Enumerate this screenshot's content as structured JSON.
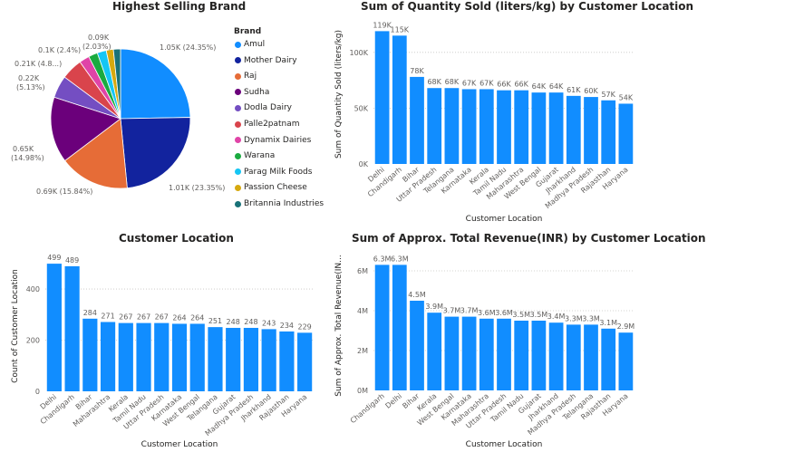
{
  "chart_data": [
    {
      "type": "pie",
      "title": "Highest Selling Brand",
      "legend_title": "Brand",
      "legend_position": "right",
      "slices": [
        {
          "name": "Amul",
          "value": 1.05,
          "label": "1.05K (24.35%)",
          "color": "#118DFF"
        },
        {
          "name": "Mother Dairy",
          "value": 1.01,
          "label": "1.01K (23.35%)",
          "color": "#12239E"
        },
        {
          "name": "Raj",
          "value": 0.69,
          "label": "0.69K (15.84%)",
          "color": "#E66C37"
        },
        {
          "name": "Sudha",
          "value": 0.65,
          "label": "0.65K (14.98%)",
          "color": "#6B007B"
        },
        {
          "name": "Dodla Dairy",
          "value": 0.22,
          "label": "0.22K (5.13%)",
          "color": "#744EC2"
        },
        {
          "name": "Palle2patnam",
          "value": 0.21,
          "label": "0.21K (4.8...)",
          "color": "#D9444C"
        },
        {
          "name": "Dynamix Dairies",
          "value": 0.1,
          "label": "0.1K (2.4%)",
          "color": "#E044A7"
        },
        {
          "name": "Warana",
          "value": 0.09,
          "label": "0.09K (2.03%)",
          "color": "#1AAB40"
        },
        {
          "name": "Parag Milk Foods",
          "value": 0.09,
          "label": "",
          "color": "#15C6F4"
        },
        {
          "name": "Passion Cheese",
          "value": 0.07,
          "label": "",
          "color": "#D6A90F"
        },
        {
          "name": "Britannia Industries",
          "value": 0.07,
          "label": "",
          "color": "#197278"
        }
      ]
    },
    {
      "type": "bar",
      "title": "Sum of Quantity Sold (liters/kg) by Customer Location",
      "xlabel": "Customer Location",
      "ylabel": "Sum of Quantity Sold (liters/kg)",
      "ylim": [
        0,
        125000
      ],
      "yticks": [
        0,
        50000,
        100000
      ],
      "ytick_labels": [
        "0K",
        "50K",
        "100K"
      ],
      "grid": true,
      "color": "#118DFF",
      "categories": [
        "Delhi",
        "Chandigarh",
        "Bihar",
        "Uttar Pradesh",
        "Telangana",
        "Karnataka",
        "Kerala",
        "Tamil Nadu",
        "Maharashtra",
        "West Bengal",
        "Gujarat",
        "Jharkhand",
        "Madhya Pradesh",
        "Rajasthan",
        "Haryana"
      ],
      "values": [
        119000,
        115000,
        78000,
        68000,
        68000,
        67000,
        67000,
        66000,
        66000,
        64000,
        64000,
        61000,
        60000,
        57000,
        54000
      ],
      "data_labels": [
        "119K",
        "115K",
        "78K",
        "68K",
        "68K",
        "67K",
        "67K",
        "66K",
        "66K",
        "64K",
        "64K",
        "61K",
        "60K",
        "57K",
        "54K"
      ]
    },
    {
      "type": "bar",
      "title": "Customer Location",
      "xlabel": "Customer Location",
      "ylabel": "Count of Customer Location",
      "ylim": [
        0,
        510
      ],
      "yticks": [
        0,
        200,
        400
      ],
      "ytick_labels": [
        "0",
        "200",
        "400"
      ],
      "grid": true,
      "color": "#118DFF",
      "categories": [
        "Delhi",
        "Chandigarh",
        "Bihar",
        "Maharashtra",
        "Kerala",
        "Tamil Nadu",
        "Uttar Pradesh",
        "Karnataka",
        "West Bengal",
        "Telangana",
        "Gujarat",
        "Madhya Pradesh",
        "Jharkhand",
        "Rajasthan",
        "Haryana"
      ],
      "values": [
        499,
        489,
        284,
        271,
        267,
        267,
        267,
        264,
        264,
        251,
        248,
        248,
        243,
        234,
        229
      ],
      "data_labels": [
        "499",
        "489",
        "284",
        "271",
        "267",
        "267",
        "267",
        "264",
        "264",
        "251",
        "248",
        "248",
        "243",
        "234",
        "229"
      ]
    },
    {
      "type": "bar",
      "title": "Sum of Approx. Total Revenue(INR) by Customer Location",
      "xlabel": "Customer Location",
      "ylabel": "Sum of Approx. Total Revenue(IN...",
      "ylim": [
        0,
        6500000
      ],
      "yticks": [
        0,
        2000000,
        4000000,
        6000000
      ],
      "ytick_labels": [
        "0M",
        "2M",
        "4M",
        "6M"
      ],
      "grid": true,
      "color": "#118DFF",
      "categories": [
        "Chandigarh",
        "Delhi",
        "Bihar",
        "Kerala",
        "West Bengal",
        "Karnataka",
        "Maharashtra",
        "Uttar Pradesh",
        "Tamil Nadu",
        "Gujarat",
        "Jharkhand",
        "Madhya Pradesh",
        "Telangana",
        "Rajasthan",
        "Haryana"
      ],
      "values": [
        6300000,
        6300000,
        4500000,
        3900000,
        3700000,
        3700000,
        3600000,
        3600000,
        3500000,
        3500000,
        3400000,
        3300000,
        3300000,
        3100000,
        2900000
      ],
      "data_labels": [
        "6.3M",
        "6.3M",
        "4.5M",
        "3.9M",
        "3.7M",
        "3.7M",
        "3.6M",
        "3.6M",
        "3.5M",
        "3.5M",
        "3.4M",
        "3.3M",
        "3.3M",
        "3.1M",
        "2.9M"
      ]
    }
  ]
}
